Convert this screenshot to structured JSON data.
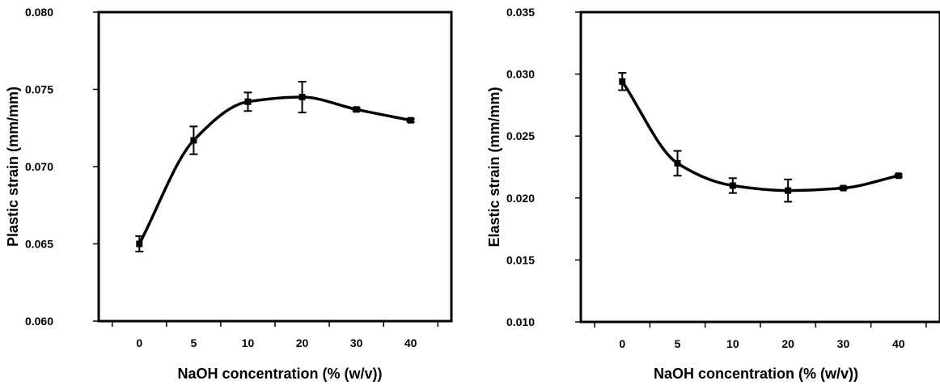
{
  "chart_data": [
    {
      "type": "line",
      "title": "",
      "xlabel": "NaOH concentration (% (w/v))",
      "ylabel": "Plastic strain (mm/mm)",
      "categories": [
        "0",
        "5",
        "10",
        "20",
        "30",
        "40"
      ],
      "ylim": [
        0.06,
        0.08
      ],
      "yticks": [
        "0.060",
        "0.065",
        "0.070",
        "0.075",
        "0.080"
      ],
      "series": [
        {
          "values": [
            0.065,
            0.0717,
            0.0742,
            0.0745,
            0.0737,
            0.073
          ],
          "error": [
            0.0005,
            0.0009,
            0.0006,
            0.001,
            0.0001,
            0.0001
          ]
        }
      ],
      "grid": false,
      "legend": "none",
      "line_color": "#000000"
    },
    {
      "type": "line",
      "title": "",
      "xlabel": "NaOH concentration (% (w/v))",
      "ylabel": "Elastic strain (mm/mm)",
      "categories": [
        "0",
        "5",
        "10",
        "20",
        "30",
        "40"
      ],
      "ylim": [
        0.01,
        0.035
      ],
      "yticks": [
        "0.010",
        "0.015",
        "0.020",
        "0.025",
        "0.030",
        "0.035"
      ],
      "series": [
        {
          "values": [
            0.0294,
            0.0228,
            0.021,
            0.0206,
            0.0208,
            0.0218
          ],
          "error": [
            0.0007,
            0.001,
            0.0006,
            0.0009,
            0.0001,
            0.0001
          ]
        }
      ],
      "grid": false,
      "legend": "none",
      "line_color": "#000000"
    }
  ]
}
